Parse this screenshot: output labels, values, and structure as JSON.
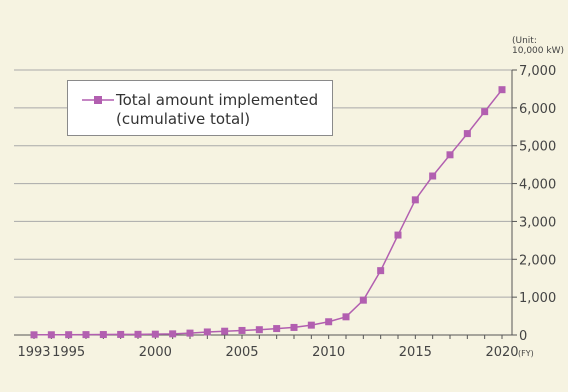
{
  "chart_data": {
    "type": "line",
    "x": [
      1993,
      1994,
      1995,
      1996,
      1997,
      1998,
      1999,
      2000,
      2001,
      2002,
      2003,
      2004,
      2005,
      2006,
      2007,
      2008,
      2009,
      2010,
      2011,
      2012,
      2013,
      2014,
      2015,
      2016,
      2017,
      2018,
      2019,
      2020
    ],
    "series": [
      {
        "name": "Total amount implemented (cumulative total)",
        "name_lines": [
          "Total amount implemented",
          "(cumulative total)"
        ],
        "values": [
          5,
          6,
          8,
          10,
          12,
          15,
          18,
          22,
          30,
          50,
          80,
          100,
          120,
          140,
          170,
          200,
          260,
          350,
          480,
          920,
          1700,
          2640,
          3570,
          4200,
          4760,
          5320,
          5900,
          6480
        ],
        "color": "#b25fb0"
      }
    ],
    "x_ticks": [
      {
        "value": 1993,
        "label": "1993"
      },
      {
        "value": 1995,
        "label": "1995"
      },
      {
        "value": 2000,
        "label": "2000"
      },
      {
        "value": 2005,
        "label": "2005"
      },
      {
        "value": 2010,
        "label": "2010"
      },
      {
        "value": 2015,
        "label": "2015"
      },
      {
        "value": 2020,
        "label": "2020"
      }
    ],
    "xlabel": "(FY)",
    "y_ticks": [
      {
        "value": 0,
        "label": "0"
      },
      {
        "value": 1000,
        "label": "1,000"
      },
      {
        "value": 2000,
        "label": "2,000"
      },
      {
        "value": 3000,
        "label": "3,000"
      },
      {
        "value": 4000,
        "label": "4,000"
      },
      {
        "value": 5000,
        "label": "5,000"
      },
      {
        "value": 6000,
        "label": "6,000"
      },
      {
        "value": 7000,
        "label": "7,000"
      }
    ],
    "ylim": [
      0,
      7000
    ],
    "xlim": [
      1993,
      2020
    ],
    "unit_lines": [
      "(Unit:",
      "10,000 kW)"
    ],
    "y_axis_position": "right",
    "grid": "horizontal",
    "legend_position": "top-left"
  }
}
